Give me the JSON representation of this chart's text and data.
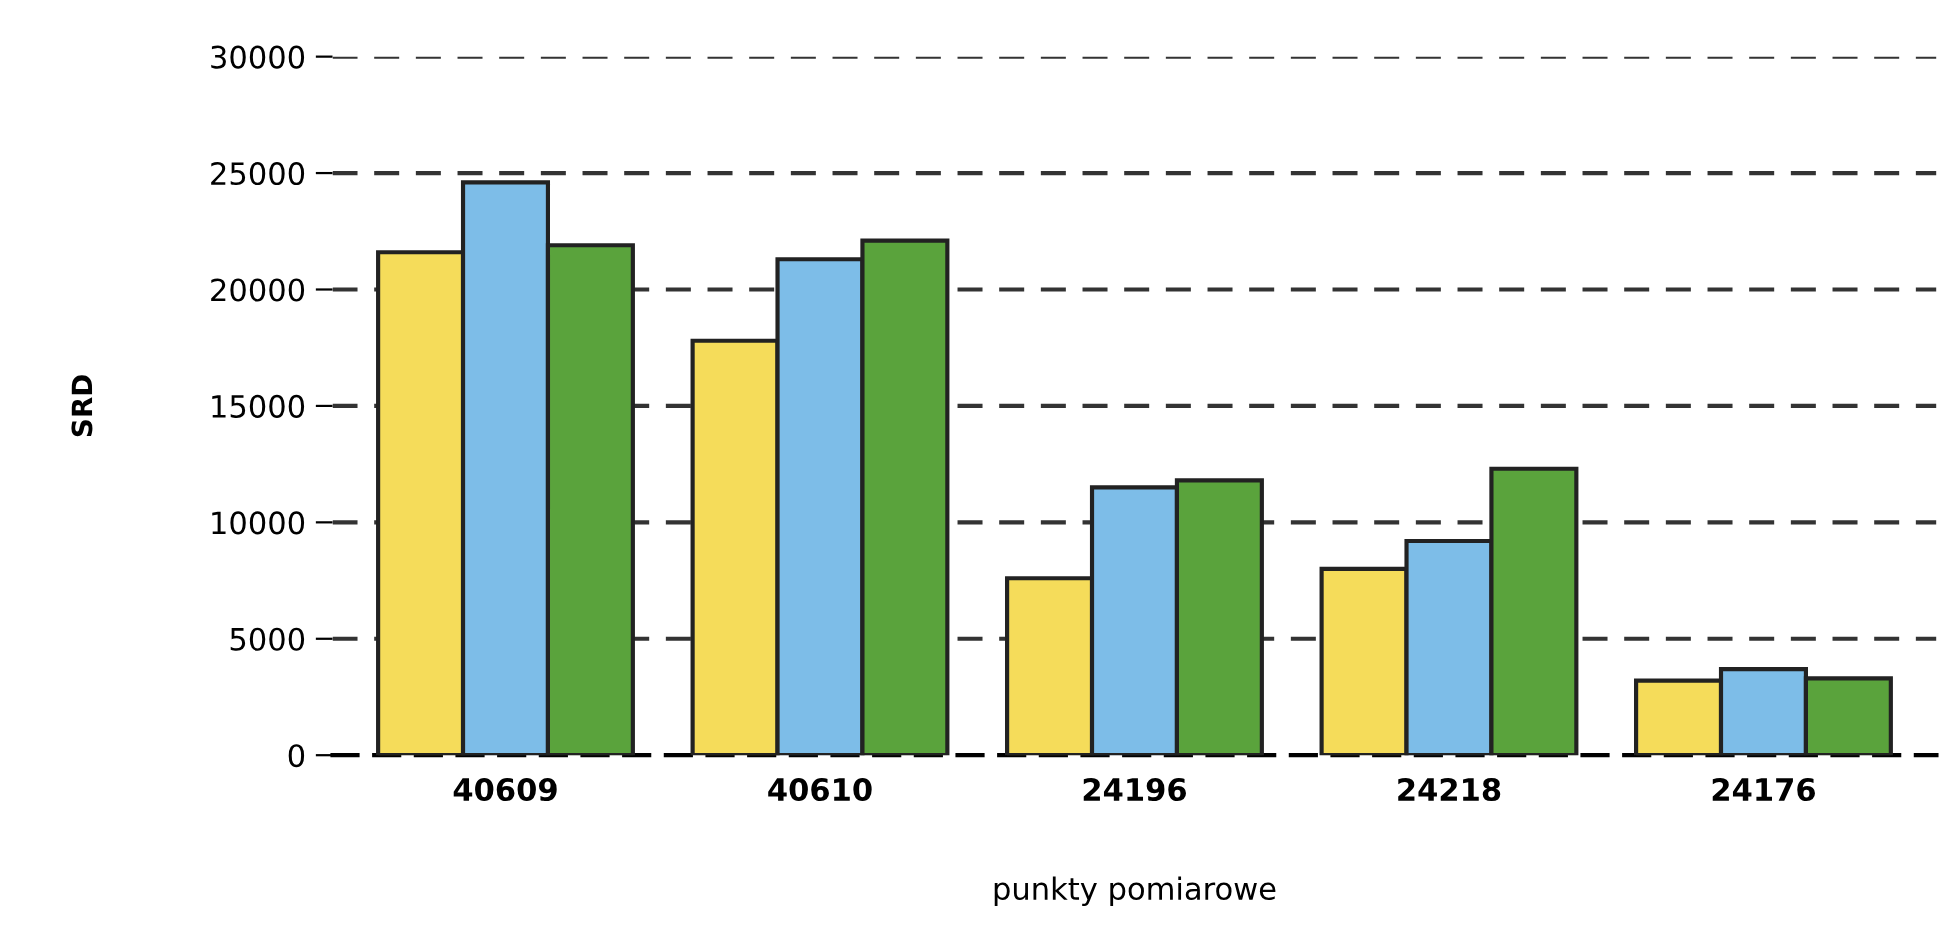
{
  "chart_data": {
    "type": "bar",
    "ylabel": "SRD",
    "xlabel": "punkty pomiarowe",
    "categories": [
      "40609",
      "40610",
      "24196",
      "24218",
      "24176"
    ],
    "series": [
      {
        "color": "#f5dc5a",
        "values": [
          21600,
          17800,
          7600,
          8000,
          3200
        ]
      },
      {
        "color": "#7dbde8",
        "values": [
          24600,
          21300,
          11500,
          9200,
          3700
        ]
      },
      {
        "color": "#5aa33c",
        "values": [
          21900,
          22100,
          11800,
          12300,
          3300
        ]
      }
    ],
    "ylim": [
      0,
      30000
    ],
    "yticks": [
      0,
      5000,
      10000,
      15000,
      20000,
      25000,
      30000
    ],
    "grid": "y",
    "legend": false
  }
}
